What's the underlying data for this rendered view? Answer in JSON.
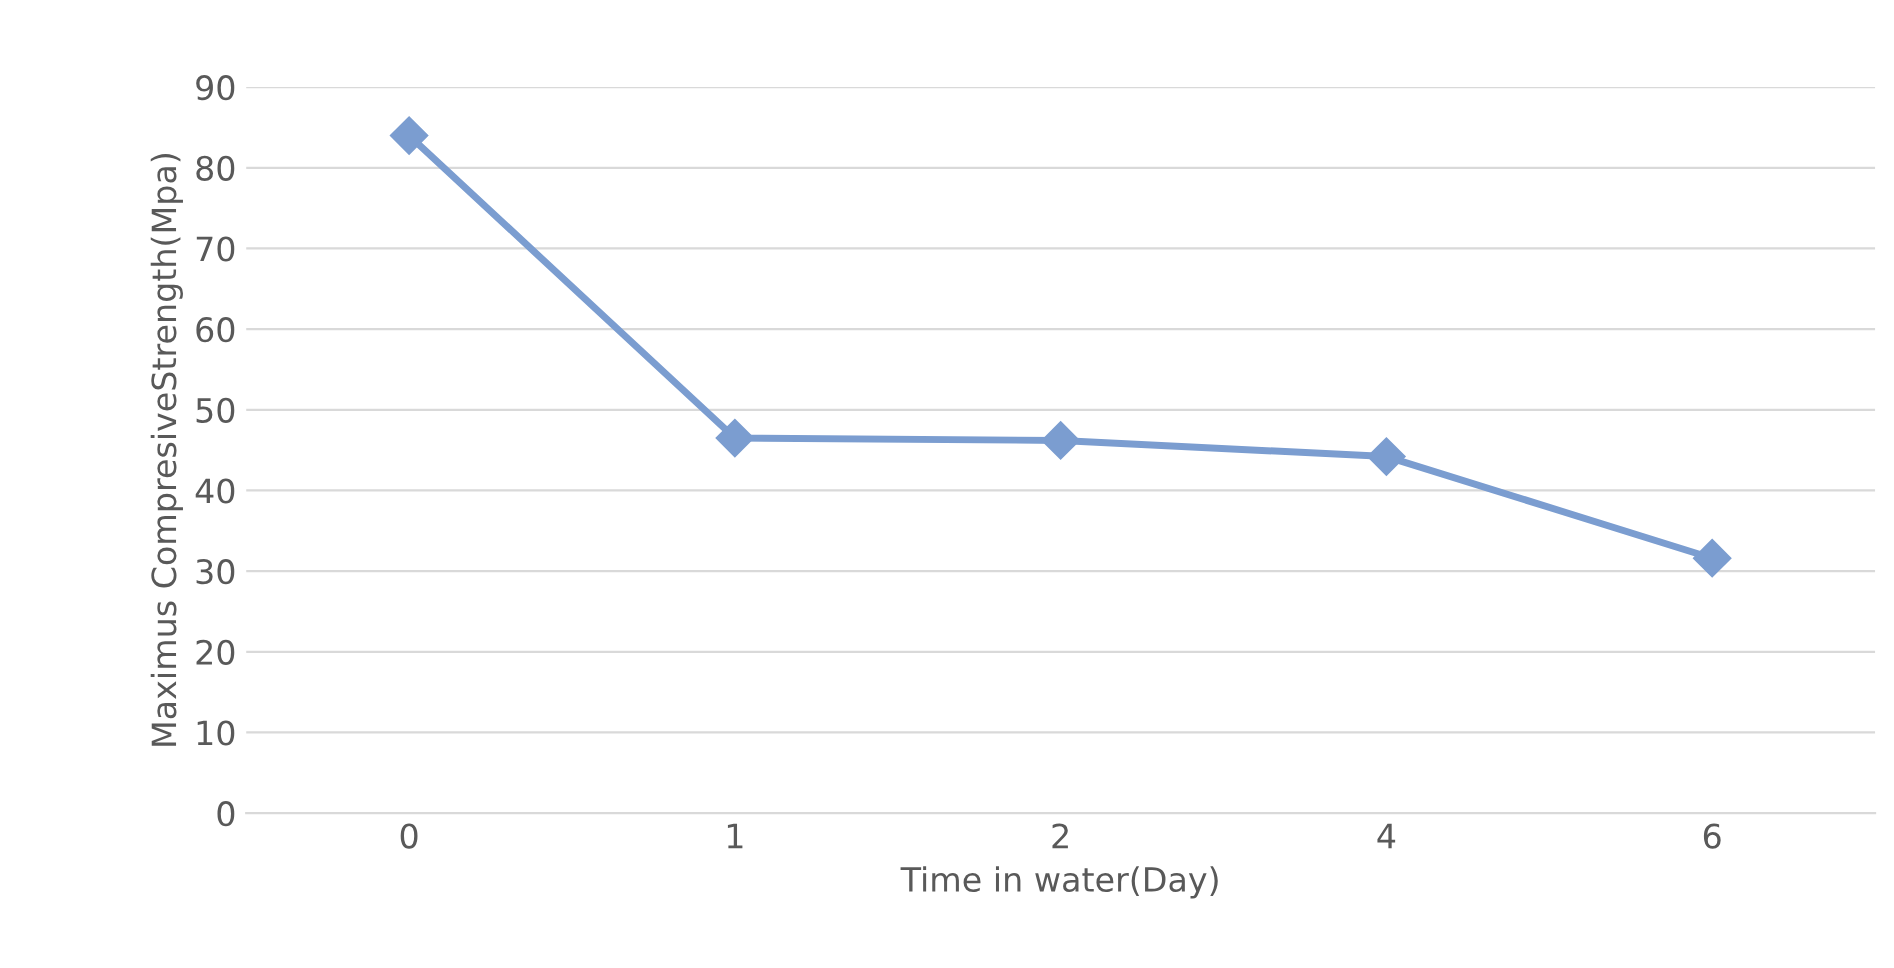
{
  "chart_data": {
    "type": "line",
    "xlabel": "Time in water(Day)",
    "ylabel": "Maximus CompresiveStrength(Mpa)",
    "categories": [
      "0",
      "1",
      "2",
      "4",
      "6"
    ],
    "series": [
      {
        "color": "#7b9dd0",
        "values": [
          84,
          46.5,
          46.2,
          44.2,
          31.6
        ]
      }
    ],
    "ylim": [
      0,
      90
    ],
    "yticks": [
      0,
      10,
      20,
      30,
      40,
      50,
      60,
      70,
      80,
      90
    ],
    "grid": "y",
    "marker": "diamond",
    "line_style": "solid"
  }
}
